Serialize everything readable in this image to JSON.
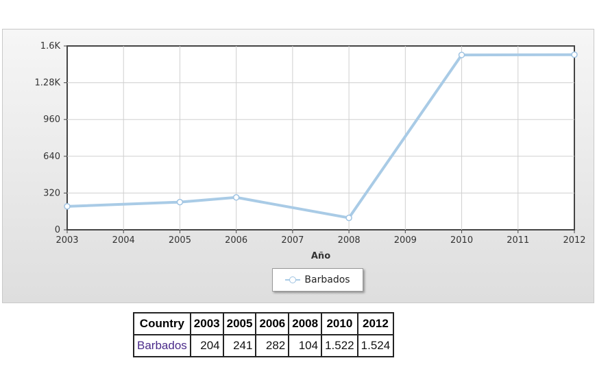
{
  "chart_data": {
    "type": "line",
    "xlabel": "Año",
    "ylabel": "",
    "x": [
      2003,
      2005,
      2006,
      2008,
      2010,
      2012
    ],
    "x_ticks": [
      "2003",
      "2004",
      "2005",
      "2006",
      "2007",
      "2008",
      "2009",
      "2010",
      "2011",
      "2012"
    ],
    "y_ticks": [
      "0",
      "320",
      "640",
      "960",
      "1.28K",
      "1.6K"
    ],
    "xlim": [
      2003,
      2012
    ],
    "ylim": [
      0,
      1600
    ],
    "grid": true,
    "legend_position": "bottom",
    "series": [
      {
        "name": "Barbados",
        "values": [
          204,
          241,
          282,
          104,
          1522,
          1524
        ],
        "color": "#a9cbe6"
      }
    ]
  },
  "table": {
    "headers": [
      "Country",
      "2003",
      "2005",
      "2006",
      "2008",
      "2010",
      "2012"
    ],
    "rows": [
      [
        "Barbados",
        "204",
        "241",
        "282",
        "104",
        "1.522",
        "1.524"
      ]
    ]
  }
}
